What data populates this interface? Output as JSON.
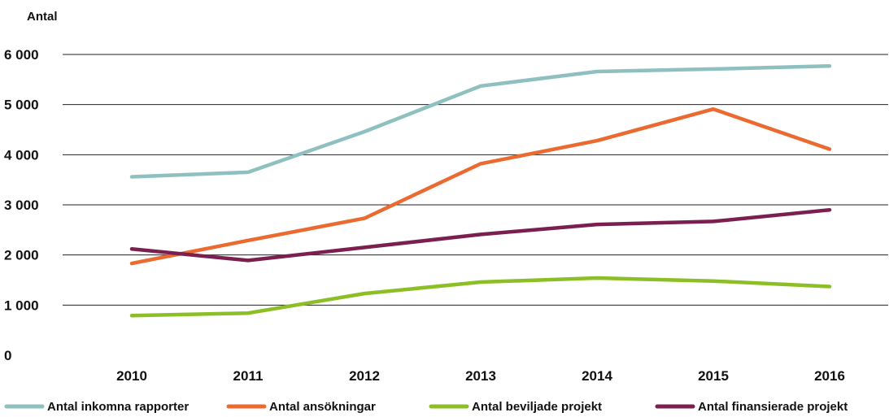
{
  "chart_data": {
    "type": "line",
    "ylabel": "Antal",
    "categories": [
      "2010",
      "2011",
      "2012",
      "2013",
      "2014",
      "2015",
      "2016"
    ],
    "ylim": [
      0,
      6000
    ],
    "yticks": [
      0,
      1000,
      2000,
      3000,
      4000,
      5000,
      6000
    ],
    "ytick_labels": [
      "0",
      "1 000",
      "2 000",
      "3 000",
      "4 000",
      "5 000",
      "6 000"
    ],
    "grid": true,
    "legend_position": "bottom",
    "series": [
      {
        "name": "Antal inkomna rapporter",
        "color": "#8fc0c0",
        "values": [
          3560,
          3650,
          4460,
          5370,
          5660,
          5710,
          5770
        ]
      },
      {
        "name": "Antal ansökningar",
        "color": "#ea6a2f",
        "values": [
          1830,
          2290,
          2730,
          3820,
          4280,
          4910,
          4110
        ]
      },
      {
        "name": "Antal beviljade projekt",
        "color": "#8cbf26",
        "values": [
          790,
          840,
          1230,
          1460,
          1540,
          1480,
          1370
        ]
      },
      {
        "name": "Antal finansierade projekt",
        "color": "#7a1f4f",
        "values": [
          2120,
          1890,
          2150,
          2410,
          2610,
          2670,
          2900
        ]
      }
    ]
  }
}
